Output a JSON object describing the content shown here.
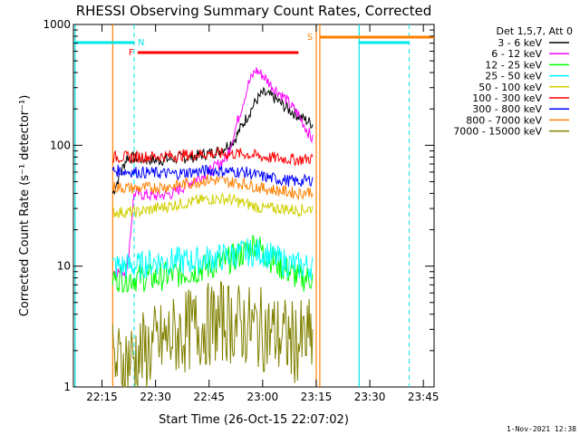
{
  "chart_data": {
    "type": "line",
    "title": "RHESSI Observing Summary Count Rates, Corrected",
    "xlabel": "Start Time (26-Oct-15 22:07:02)",
    "ylabel": "Corrected Count Rate (s⁻¹ detector⁻¹)",
    "yscale": "log",
    "ylim": [
      1,
      1000
    ],
    "xlim_minutes": [
      22.05,
      23.8
    ],
    "x_ticks": [
      "22:15",
      "22:30",
      "22:45",
      "23:00",
      "23:15",
      "23:30",
      "23:45"
    ],
    "y_ticks": [
      "1",
      "10",
      "100",
      "1000"
    ],
    "legend_header": "Det 1,5,7, Att 0",
    "legend_position": "right",
    "footer_date": "1-Nov-2021 12:38",
    "flags": {
      "N": "N",
      "F": "F",
      "S": "S"
    },
    "series": [
      {
        "name": "3 - 6 keV",
        "color": "#000000",
        "x": [
          "22:18",
          "22:22",
          "22:30",
          "22:40",
          "22:48",
          "22:52",
          "22:55",
          "22:58",
          "23:00",
          "23:03",
          "23:06",
          "23:10",
          "23:14"
        ],
        "values": [
          40,
          80,
          75,
          80,
          90,
          110,
          160,
          230,
          270,
          250,
          210,
          175,
          150
        ]
      },
      {
        "name": "6 - 12 keV",
        "color": "#ff00ff",
        "x": [
          "22:18",
          "22:22",
          "22:24",
          "22:30",
          "22:35",
          "22:40",
          "22:45",
          "22:50",
          "22:53",
          "22:56",
          "22:58",
          "23:00",
          "23:03",
          "23:06",
          "23:10",
          "23:14"
        ],
        "values": [
          9,
          9,
          40,
          38,
          40,
          50,
          60,
          80,
          160,
          320,
          420,
          380,
          300,
          250,
          180,
          110
        ]
      },
      {
        "name": "12 - 25 keV",
        "color": "#00ff00",
        "x": [
          "22:18",
          "22:25",
          "22:30",
          "22:40",
          "22:50",
          "22:55",
          "22:58",
          "23:00",
          "23:05",
          "23:10",
          "23:14"
        ],
        "values": [
          8,
          8,
          8,
          9,
          11,
          13,
          16,
          13,
          10,
          8,
          8
        ]
      },
      {
        "name": "25 - 50 keV",
        "color": "#00ffff",
        "x": [
          "22:18",
          "22:25",
          "22:30",
          "22:40",
          "22:50",
          "22:55",
          "23:00",
          "23:05",
          "23:10",
          "23:14"
        ],
        "values": [
          10,
          10,
          11,
          11,
          12,
          13,
          13,
          11,
          10,
          10
        ]
      },
      {
        "name": "50 - 100 keV",
        "color": "#d0d000",
        "x": [
          "22:18",
          "22:25",
          "22:35",
          "22:45",
          "22:50",
          "22:55",
          "23:00",
          "23:05",
          "23:10",
          "23:14"
        ],
        "values": [
          28,
          28,
          32,
          36,
          36,
          33,
          30,
          30,
          29,
          30
        ]
      },
      {
        "name": "100 - 300 keV",
        "color": "#ff0000",
        "x": [
          "22:18",
          "22:25",
          "22:35",
          "22:45",
          "22:55",
          "23:00",
          "23:05",
          "23:10",
          "23:14"
        ],
        "values": [
          80,
          80,
          82,
          85,
          85,
          80,
          78,
          76,
          78
        ]
      },
      {
        "name": "300 - 800 keV",
        "color": "#0000ff",
        "x": [
          "22:18",
          "22:25",
          "22:35",
          "22:45",
          "22:55",
          "23:00",
          "23:05",
          "23:10",
          "23:14"
        ],
        "values": [
          62,
          60,
          58,
          62,
          60,
          55,
          52,
          50,
          52
        ]
      },
      {
        "name": "800 - 7000 keV",
        "color": "#ff8000",
        "x": [
          "22:18",
          "22:25",
          "22:35",
          "22:45",
          "22:55",
          "23:00",
          "23:05",
          "23:10",
          "23:14"
        ],
        "values": [
          45,
          44,
          46,
          52,
          48,
          44,
          42,
          40,
          42
        ]
      },
      {
        "name": "7000 - 15000 keV",
        "color": "#808000",
        "x": [
          "22:18",
          "22:25",
          "22:30",
          "22:35",
          "22:40",
          "22:45",
          "22:50",
          "22:55",
          "23:00",
          "23:05",
          "23:10",
          "23:14"
        ],
        "values": [
          1.5,
          1.8,
          2.2,
          2.6,
          3.0,
          3.3,
          3.5,
          3.2,
          3.0,
          2.6,
          2.3,
          2.5
        ]
      }
    ]
  }
}
